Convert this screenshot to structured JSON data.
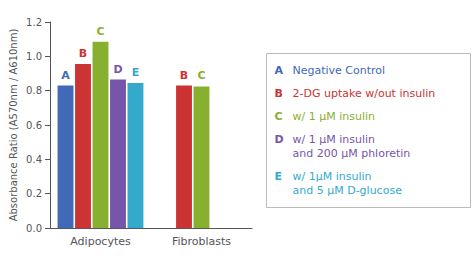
{
  "chart_data": {
    "type": "bar",
    "categories": [
      "Adipocytes",
      "Fibroblasts"
    ],
    "ylabel": "Absorbance Ratio (A570nm / A610nm)",
    "ylim": [
      0,
      1.2
    ],
    "yticks": [
      {
        "value": 0,
        "label": "0.0"
      },
      0.2,
      0.4,
      0.6,
      0.8,
      {
        "value": 1.0,
        "label": "1.0"
      },
      1.2
    ],
    "grid": false,
    "legend": "right",
    "series": [
      {
        "name": "A",
        "label": "Negative Control",
        "color": "#4169b8",
        "values": [
          0.83,
          null
        ]
      },
      {
        "name": "B",
        "label": "2-DG uptake w/out insulin",
        "color": "#cc3333",
        "values": [
          0.955,
          0.83
        ]
      },
      {
        "name": "C",
        "label": "w/ 1 μM insulin",
        "color": "#88b030",
        "values": [
          1.085,
          0.825
        ]
      },
      {
        "name": "D",
        "label": "w/ 1 μM insulin\nand 200 μM phloretin",
        "color": "#7755aa",
        "values": [
          0.865,
          null
        ]
      },
      {
        "name": "E",
        "label": "w/ 1μM insulin\nand 5 μM D-glucose",
        "color": "#33aacc",
        "values": [
          0.845,
          null
        ]
      }
    ]
  }
}
